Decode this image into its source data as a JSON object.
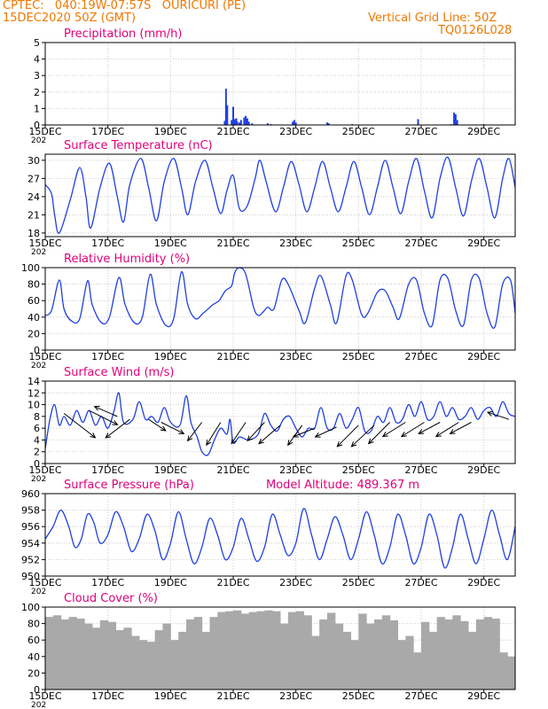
{
  "header": {
    "line1": "CPTEC:   040:19W-07:57S   OURICURI (PE)",
    "line2": "15DEC2020 50Z (GMT)",
    "right1": "Vertical Grid Line: 50Z",
    "right2": "TQ0126L028"
  },
  "colors": {
    "header": "#f07800",
    "title": "#e0007a",
    "line": "#2040e0",
    "cloud": "#a9a9a9",
    "wind_arrow": "#000000",
    "vgrid": "#cccccc"
  },
  "x_axis": {
    "tick_labels": [
      "15DEC",
      "17DEC",
      "19DEC",
      "21DEC",
      "23DEC",
      "25DEC",
      "27DEC",
      "29DEC"
    ],
    "tick_days": [
      0,
      2,
      4,
      6,
      8,
      10,
      12,
      14
    ],
    "year_label": "202",
    "xlim_days": [
      0,
      15
    ]
  },
  "chart_data": [
    {
      "type": "bar",
      "title": "Precipitation (mm/h)",
      "ylim": [
        0,
        5
      ],
      "yticks": [
        0,
        1,
        2,
        3,
        4,
        5
      ],
      "x": [
        5.73,
        5.77,
        5.81,
        5.95,
        6.0,
        6.05,
        6.1,
        6.13,
        6.2,
        6.25,
        6.35,
        6.4,
        6.45,
        6.5,
        6.6,
        7.1,
        7.2,
        7.9,
        7.95,
        8.0,
        9.0,
        9.05,
        9.8,
        11.9,
        12.95,
        13.05,
        13.1,
        13.15,
        14.0
      ],
      "values": [
        0.25,
        2.2,
        1.2,
        0.3,
        1.1,
        0.35,
        0.4,
        0.2,
        0.15,
        0.3,
        0.45,
        0.55,
        0.4,
        0.2,
        0.1,
        0.1,
        0.05,
        0.2,
        0.3,
        0.15,
        0.15,
        0.1,
        0.05,
        0.35,
        0.05,
        0.75,
        0.65,
        0.3,
        0.05
      ],
      "grid": "dotted"
    },
    {
      "type": "line",
      "title": "Surface Temperature (nC)",
      "ylim": [
        17.4,
        31
      ],
      "yticks": [
        18,
        21,
        24,
        27,
        30
      ],
      "x": [
        0.0,
        0.2,
        0.3,
        0.45,
        0.8,
        1.1,
        1.3,
        1.45,
        1.75,
        2.05,
        2.3,
        2.5,
        2.7,
        3.05,
        3.3,
        3.55,
        3.8,
        4.1,
        4.35,
        4.55,
        4.8,
        5.1,
        5.35,
        5.6,
        5.8,
        6.0,
        6.2,
        6.45,
        6.7,
        6.85,
        7.05,
        7.35,
        7.6,
        7.85,
        8.1,
        8.35,
        8.6,
        8.85,
        9.1,
        9.35,
        9.6,
        9.85,
        10.1,
        10.35,
        10.6,
        10.85,
        11.1,
        11.35,
        11.6,
        11.85,
        12.1,
        12.35,
        12.6,
        12.85,
        13.1,
        13.35,
        13.6,
        13.85,
        14.1,
        14.35,
        14.6,
        14.8,
        15.0
      ],
      "values": [
        26.0,
        24.5,
        21.0,
        18.0,
        23.5,
        28.8,
        24.0,
        18.8,
        25.5,
        29.5,
        24.0,
        19.8,
        26.0,
        30.3,
        25.5,
        20.0,
        26.5,
        30.3,
        25.5,
        21.0,
        26.5,
        30.0,
        25.5,
        21.2,
        25.0,
        27.5,
        22.0,
        22.5,
        27.0,
        30.0,
        26.5,
        21.5,
        25.5,
        29.8,
        26.0,
        21.5,
        25.5,
        29.8,
        25.5,
        21.5,
        25.5,
        29.8,
        25.5,
        21.0,
        25.5,
        30.0,
        25.5,
        21.2,
        26.5,
        30.3,
        25.0,
        20.5,
        27.0,
        30.5,
        25.5,
        20.8,
        26.5,
        30.3,
        25.5,
        20.5,
        27.0,
        30.3,
        25.5
      ],
      "grid": "dotted"
    },
    {
      "type": "line",
      "title": "Relative Humidity (%)",
      "ylim": [
        0,
        100
      ],
      "yticks": [
        0,
        20,
        40,
        60,
        80,
        100
      ],
      "x": [
        0.0,
        0.2,
        0.45,
        0.6,
        0.85,
        1.1,
        1.35,
        1.5,
        1.8,
        2.05,
        2.35,
        2.55,
        2.85,
        3.1,
        3.35,
        3.55,
        3.85,
        4.1,
        4.35,
        4.55,
        4.8,
        5.05,
        5.35,
        5.55,
        5.75,
        5.95,
        6.05,
        6.2,
        6.4,
        6.65,
        6.8,
        6.95,
        7.1,
        7.3,
        7.55,
        7.75,
        8.1,
        8.3,
        8.6,
        8.8,
        9.1,
        9.3,
        9.6,
        9.8,
        10.1,
        10.3,
        10.6,
        10.85,
        11.1,
        11.3,
        11.6,
        11.85,
        12.1,
        12.35,
        12.6,
        12.85,
        13.1,
        13.35,
        13.6,
        13.85,
        14.1,
        14.35,
        14.6,
        14.85,
        15.0
      ],
      "values": [
        42,
        48,
        85,
        50,
        35,
        38,
        84,
        55,
        33,
        40,
        88,
        55,
        33,
        40,
        92,
        55,
        30,
        38,
        95,
        55,
        38,
        45,
        55,
        60,
        72,
        78,
        94,
        100,
        92,
        52,
        42,
        46,
        52,
        50,
        85,
        80,
        48,
        33,
        75,
        90,
        55,
        33,
        90,
        85,
        43,
        45,
        70,
        72,
        52,
        38,
        80,
        85,
        45,
        30,
        85,
        87,
        48,
        30,
        85,
        87,
        45,
        28,
        80,
        85,
        45
      ],
      "grid": "dotted"
    },
    {
      "type": "line",
      "title": "Surface Wind (m/s)",
      "ylim": [
        0,
        14
      ],
      "yticks": [
        0,
        2,
        4,
        6,
        8,
        10,
        12,
        14
      ],
      "x": [
        0.0,
        0.15,
        0.3,
        0.45,
        0.6,
        0.8,
        1.0,
        1.2,
        1.4,
        1.6,
        1.8,
        2.0,
        2.2,
        2.35,
        2.5,
        2.8,
        3.0,
        3.2,
        3.4,
        3.6,
        3.8,
        4.0,
        4.3,
        4.5,
        4.65,
        4.85,
        5.0,
        5.2,
        5.4,
        5.6,
        5.8,
        5.9,
        6.0,
        6.2,
        6.5,
        6.8,
        7.0,
        7.2,
        7.4,
        7.6,
        7.8,
        8.0,
        8.2,
        8.4,
        8.6,
        8.8,
        9.0,
        9.2,
        9.4,
        9.6,
        9.8,
        10.0,
        10.2,
        10.4,
        10.6,
        10.8,
        11.0,
        11.2,
        11.4,
        11.6,
        11.8,
        12.0,
        12.2,
        12.4,
        12.6,
        12.8,
        13.0,
        13.2,
        13.4,
        13.6,
        13.8,
        14.0,
        14.2,
        14.4,
        14.6,
        14.8,
        15.0
      ],
      "values": [
        2.5,
        7.5,
        10.0,
        6.5,
        8.0,
        6.5,
        9.0,
        7.0,
        9.0,
        6.5,
        8.0,
        6.0,
        9.0,
        12.0,
        7.0,
        7.5,
        10.5,
        7.5,
        8.0,
        7.0,
        9.5,
        7.0,
        6.5,
        11.5,
        7.0,
        4.5,
        2.0,
        1.5,
        4.0,
        6.0,
        5.0,
        7.5,
        3.5,
        4.5,
        4.0,
        5.0,
        8.5,
        6.5,
        5.5,
        7.5,
        8.0,
        6.0,
        4.5,
        6.0,
        6.0,
        9.5,
        6.0,
        6.0,
        8.5,
        6.0,
        7.5,
        9.5,
        5.5,
        5.5,
        8.0,
        7.0,
        9.5,
        7.0,
        7.5,
        10.0,
        8.0,
        10.5,
        7.5,
        8.0,
        10.5,
        8.0,
        9.5,
        7.5,
        8.0,
        9.5,
        7.5,
        9.0,
        9.5,
        8.0,
        10.5,
        8.5,
        8.0
      ],
      "vectors": [
        {
          "x": 0.6,
          "y": 8.5,
          "u": 2.2,
          "v": -1.7
        },
        {
          "x": 1.4,
          "y": 9.0,
          "u": 2.0,
          "v": -1.0
        },
        {
          "x": 2.3,
          "y": 8.0,
          "u": -1.6,
          "v": 0.7
        },
        {
          "x": 2.7,
          "y": 7.5,
          "u": -1.7,
          "v": -1.3
        },
        {
          "x": 3.3,
          "y": 7.5,
          "u": 1.2,
          "v": -0.8
        },
        {
          "x": 3.7,
          "y": 7.0,
          "u": 1.6,
          "v": -0.8
        },
        {
          "x": 5.0,
          "y": 7.0,
          "u": -1.0,
          "v": -1.3
        },
        {
          "x": 5.6,
          "y": 7.0,
          "u": -1.0,
          "v": -1.6
        },
        {
          "x": 6.4,
          "y": 7.0,
          "u": -1.0,
          "v": -1.5
        },
        {
          "x": 7.0,
          "y": 7.0,
          "u": -1.2,
          "v": -1.3
        },
        {
          "x": 7.5,
          "y": 6.5,
          "u": -1.5,
          "v": -1.3
        },
        {
          "x": 8.2,
          "y": 6.5,
          "u": -1.0,
          "v": -1.4
        },
        {
          "x": 8.6,
          "y": 6.0,
          "u": -1.5,
          "v": -0.6
        },
        {
          "x": 9.3,
          "y": 6.2,
          "u": -1.5,
          "v": -0.7
        },
        {
          "x": 10.0,
          "y": 6.5,
          "u": -1.5,
          "v": -1.5
        },
        {
          "x": 10.5,
          "y": 6.5,
          "u": -1.6,
          "v": -1.5
        },
        {
          "x": 11.0,
          "y": 7.0,
          "u": -1.5,
          "v": -1.5
        },
        {
          "x": 11.5,
          "y": 7.0,
          "u": -1.6,
          "v": -1.0
        },
        {
          "x": 12.1,
          "y": 7.0,
          "u": -1.6,
          "v": -1.0
        },
        {
          "x": 12.6,
          "y": 7.0,
          "u": -1.5,
          "v": -0.8
        },
        {
          "x": 13.2,
          "y": 7.0,
          "u": -1.6,
          "v": -1.0
        },
        {
          "x": 13.6,
          "y": 7.0,
          "u": -1.5,
          "v": -0.8
        },
        {
          "x": 14.8,
          "y": 7.5,
          "u": -1.5,
          "v": 0.5
        }
      ],
      "grid": "dotted"
    },
    {
      "type": "line",
      "title": "Surface Pressure (hPa)",
      "annotation": "Model Altitude: 489.367 m",
      "ylim": [
        950,
        960
      ],
      "yticks": [
        950,
        952,
        954,
        956,
        958,
        960
      ],
      "x": [
        0.0,
        0.25,
        0.5,
        0.75,
        0.95,
        1.15,
        1.35,
        1.55,
        1.75,
        2.0,
        2.25,
        2.5,
        2.75,
        3.0,
        3.25,
        3.5,
        3.75,
        4.0,
        4.25,
        4.5,
        4.75,
        5.0,
        5.25,
        5.5,
        5.75,
        6.0,
        6.25,
        6.5,
        6.75,
        7.0,
        7.25,
        7.5,
        7.75,
        8.0,
        8.25,
        8.5,
        8.75,
        9.0,
        9.25,
        9.5,
        9.75,
        10.0,
        10.25,
        10.5,
        10.75,
        11.0,
        11.25,
        11.5,
        11.75,
        12.0,
        12.25,
        12.5,
        12.75,
        13.0,
        13.25,
        13.5,
        13.75,
        14.0,
        14.25,
        14.5,
        14.75,
        15.0
      ],
      "values": [
        954.5,
        956.0,
        958.0,
        956.0,
        953.5,
        954.5,
        957.5,
        956.5,
        954.0,
        955.0,
        957.8,
        956.0,
        953.0,
        954.5,
        957.5,
        955.5,
        952.0,
        954.0,
        957.8,
        954.5,
        951.5,
        953.5,
        957.0,
        955.0,
        952.0,
        953.5,
        957.0,
        954.5,
        951.8,
        953.5,
        957.5,
        955.0,
        952.5,
        954.0,
        958.2,
        955.0,
        952.0,
        954.5,
        957.2,
        955.0,
        952.0,
        954.5,
        957.8,
        955.0,
        951.5,
        953.5,
        957.5,
        955.0,
        951.5,
        953.5,
        957.5,
        955.0,
        951.0,
        953.5,
        957.5,
        954.5,
        951.5,
        954.5,
        958.0,
        955.0,
        952.0,
        956.0
      ],
      "grid": "dotted"
    },
    {
      "type": "bar",
      "title": "Cloud Cover (%)",
      "ylim": [
        0,
        100
      ],
      "yticks": [
        0,
        20,
        40,
        60,
        80,
        100
      ],
      "x": [
        0.0,
        0.25,
        0.5,
        0.75,
        1.0,
        1.25,
        1.5,
        1.75,
        2.0,
        2.25,
        2.5,
        2.75,
        3.0,
        3.25,
        3.5,
        3.75,
        4.0,
        4.25,
        4.5,
        4.75,
        5.0,
        5.25,
        5.5,
        5.75,
        6.0,
        6.25,
        6.5,
        6.75,
        7.0,
        7.25,
        7.5,
        7.75,
        8.0,
        8.25,
        8.5,
        8.75,
        9.0,
        9.25,
        9.5,
        9.75,
        10.0,
        10.25,
        10.5,
        10.75,
        11.0,
        11.25,
        11.5,
        11.75,
        12.0,
        12.25,
        12.5,
        12.75,
        13.0,
        13.25,
        13.5,
        13.75,
        14.0,
        14.25,
        14.5,
        14.75
      ],
      "values": [
        88,
        90,
        85,
        88,
        86,
        80,
        75,
        84,
        82,
        72,
        75,
        65,
        60,
        58,
        72,
        80,
        60,
        70,
        85,
        88,
        70,
        88,
        94,
        95,
        96,
        92,
        94,
        95,
        96,
        95,
        80,
        94,
        95,
        90,
        65,
        85,
        93,
        80,
        70,
        60,
        92,
        80,
        85,
        90,
        84,
        60,
        65,
        45,
        82,
        70,
        88,
        85,
        90,
        83,
        70,
        85,
        88,
        86,
        45,
        40
      ],
      "grid": "dotted"
    }
  ]
}
